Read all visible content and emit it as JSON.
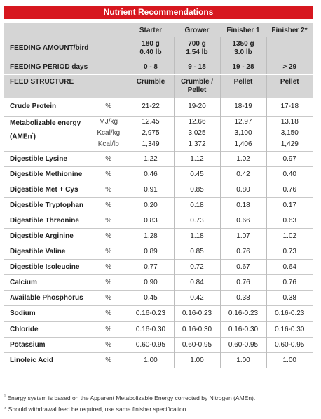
{
  "title": "Nutrient Recommendations",
  "columns": [
    "Starter",
    "Grower",
    "Finisher 1",
    "Finisher 2*"
  ],
  "feeding_amount": {
    "label": "FEEDING AMOUNT/bird",
    "values": [
      [
        "180 g",
        "0.40 lb"
      ],
      [
        "700 g",
        "1.54 lb"
      ],
      [
        "1350 g",
        "3.0 lb"
      ],
      [
        "",
        ""
      ]
    ]
  },
  "feeding_period": {
    "label": "FEEDING PERIOD days",
    "values": [
      "0 - 8",
      "9 - 18",
      "19 - 28",
      "> 29"
    ]
  },
  "feed_structure": {
    "label": "FEED STRUCTURE",
    "values": [
      [
        "Crumble",
        ""
      ],
      [
        "Crumble /",
        "Pellet"
      ],
      [
        "Pellet",
        ""
      ],
      [
        "Pellet",
        ""
      ]
    ]
  },
  "crude_protein": {
    "label": "Crude Protein",
    "unit": "%",
    "values": [
      "21-22",
      "19-20",
      "18-19",
      "17-18"
    ]
  },
  "energy": {
    "label_line1": "Metabolizable energy",
    "label_line2": "(AMEn",
    "label_sup": "¹",
    "label_close": ")",
    "rows": [
      {
        "unit": "MJ/kg",
        "values": [
          "12.45",
          "12.66",
          "12.97",
          "13.18"
        ]
      },
      {
        "unit": "Kcal/kg",
        "values": [
          "2,975",
          "3,025",
          "3,100",
          "3,150"
        ]
      },
      {
        "unit": "Kcal/lb",
        "values": [
          "1,349",
          "1,372",
          "1,406",
          "1,429"
        ]
      }
    ]
  },
  "nutrients": [
    {
      "label": "Digestible Lysine",
      "unit": "%",
      "values": [
        "1.22",
        "1.12",
        "1.02",
        "0.97"
      ]
    },
    {
      "label": "Digestible Methionine",
      "unit": "%",
      "values": [
        "0.46",
        "0.45",
        "0.42",
        "0.40"
      ]
    },
    {
      "label": "Digestible Met + Cys",
      "unit": "%",
      "values": [
        "0.91",
        "0.85",
        "0.80",
        "0.76"
      ]
    },
    {
      "label": "Digestible Tryptophan",
      "unit": "%",
      "values": [
        "0.20",
        "0.18",
        "0.18",
        "0.17"
      ]
    },
    {
      "label": "Digestible Threonine",
      "unit": "%",
      "values": [
        "0.83",
        "0.73",
        "0.66",
        "0.63"
      ]
    },
    {
      "label": "Digestible Arginine",
      "unit": "%",
      "values": [
        "1.28",
        "1.18",
        "1.07",
        "1.02"
      ]
    },
    {
      "label": "Digestible Valine",
      "unit": "%",
      "values": [
        "0.89",
        "0.85",
        "0.76",
        "0.73"
      ]
    },
    {
      "label": "Digestible Isoleucine",
      "unit": "%",
      "values": [
        "0.77",
        "0.72",
        "0.67",
        "0.64"
      ]
    },
    {
      "label": "Calcium",
      "unit": "%",
      "values": [
        "0.90",
        "0.84",
        "0.76",
        "0.76"
      ]
    },
    {
      "label": "Available Phosphorus",
      "unit": "%",
      "values": [
        "0.45",
        "0.42",
        "0.38",
        "0.38"
      ]
    },
    {
      "label": "Sodium",
      "unit": "%",
      "values": [
        "0.16-0.23",
        "0.16-0.23",
        "0.16-0.23",
        "0.16-0.23"
      ]
    },
    {
      "label": "Chloride",
      "unit": "%",
      "values": [
        "0.16-0.30",
        "0.16-0.30",
        "0.16-0.30",
        "0.16-0.30"
      ]
    },
    {
      "label": "Potassium",
      "unit": "%",
      "values": [
        "0.60-0.95",
        "0.60-0.95",
        "0.60-0.95",
        "0.60-0.95"
      ]
    },
    {
      "label": "Linoleic Acid",
      "unit": "%",
      "values": [
        "1.00",
        "1.00",
        "1.00",
        "1.00"
      ]
    }
  ],
  "footnotes": {
    "note1_marker": "¹",
    "note1": " Energy system is based on the Apparent Metabolizable Energy corrected by Nitrogen (AMEn).",
    "note2": "* Should withdrawal feed be required, use same finisher specification."
  },
  "colors": {
    "banner": "#d7171f",
    "header_grey": "#d5d5d5"
  }
}
